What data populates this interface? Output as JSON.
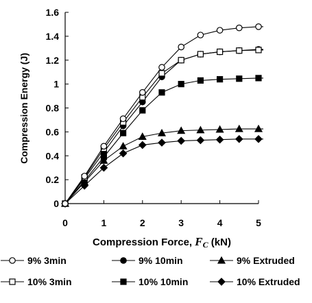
{
  "chart_data": {
    "type": "line",
    "title": "",
    "xlabel_main": "Compression Force, ",
    "xlabel_var": "F",
    "xlabel_sub": "C",
    "xlabel_unit": " (kN)",
    "ylabel": "Compression Energy (J)",
    "xlim": [
      0,
      5
    ],
    "ylim": [
      0,
      1.6
    ],
    "x_ticks": [
      "0",
      "1",
      "2",
      "3",
      "4",
      "5"
    ],
    "y_ticks": [
      "0",
      "0.2",
      "0.4",
      "0.6",
      "0.8",
      "1",
      "1.2",
      "1.4",
      "1.6"
    ],
    "grid": false,
    "legend_position": "bottom",
    "series": [
      {
        "name": "9% 3min",
        "marker": "circle-open",
        "x": [
          0,
          0.5,
          1,
          1.5,
          2,
          2.5,
          3,
          3.5,
          4,
          4.5,
          5
        ],
        "y": [
          0,
          0.23,
          0.48,
          0.71,
          0.93,
          1.14,
          1.31,
          1.41,
          1.45,
          1.47,
          1.48
        ]
      },
      {
        "name": "9% 10min",
        "marker": "circle-filled",
        "x": [
          0,
          0.5,
          1,
          1.5,
          2,
          2.5,
          3,
          3.5,
          4,
          4.5,
          5
        ],
        "y": [
          0,
          0.21,
          0.43,
          0.65,
          0.85,
          1.06,
          1.2,
          1.25,
          1.27,
          1.28,
          1.29
        ]
      },
      {
        "name": "9% Extruded",
        "marker": "triangle-filled",
        "x": [
          0,
          0.5,
          1,
          1.5,
          2,
          2.5,
          3,
          3.5,
          4,
          4.5,
          5
        ],
        "y": [
          0,
          0.18,
          0.36,
          0.48,
          0.56,
          0.59,
          0.61,
          0.615,
          0.62,
          0.625,
          0.625
        ]
      },
      {
        "name": "10% 3min",
        "marker": "square-open",
        "x": [
          0,
          0.5,
          1,
          1.5,
          2,
          2.5,
          3,
          3.5,
          4,
          4.5,
          5
        ],
        "y": [
          0,
          0.22,
          0.46,
          0.68,
          0.89,
          1.09,
          1.2,
          1.25,
          1.27,
          1.28,
          1.285
        ]
      },
      {
        "name": "10% 10min",
        "marker": "square-filled",
        "x": [
          0,
          0.5,
          1,
          1.5,
          2,
          2.5,
          3,
          3.5,
          4,
          4.5,
          5
        ],
        "y": [
          0,
          0.19,
          0.39,
          0.59,
          0.78,
          0.93,
          1.0,
          1.03,
          1.04,
          1.045,
          1.05
        ]
      },
      {
        "name": "10% Extruded",
        "marker": "diamond-filled",
        "x": [
          0,
          0.5,
          1,
          1.5,
          2,
          2.5,
          3,
          3.5,
          4,
          4.5,
          5
        ],
        "y": [
          0,
          0.15,
          0.3,
          0.42,
          0.49,
          0.51,
          0.525,
          0.53,
          0.535,
          0.54,
          0.54
        ]
      }
    ]
  }
}
